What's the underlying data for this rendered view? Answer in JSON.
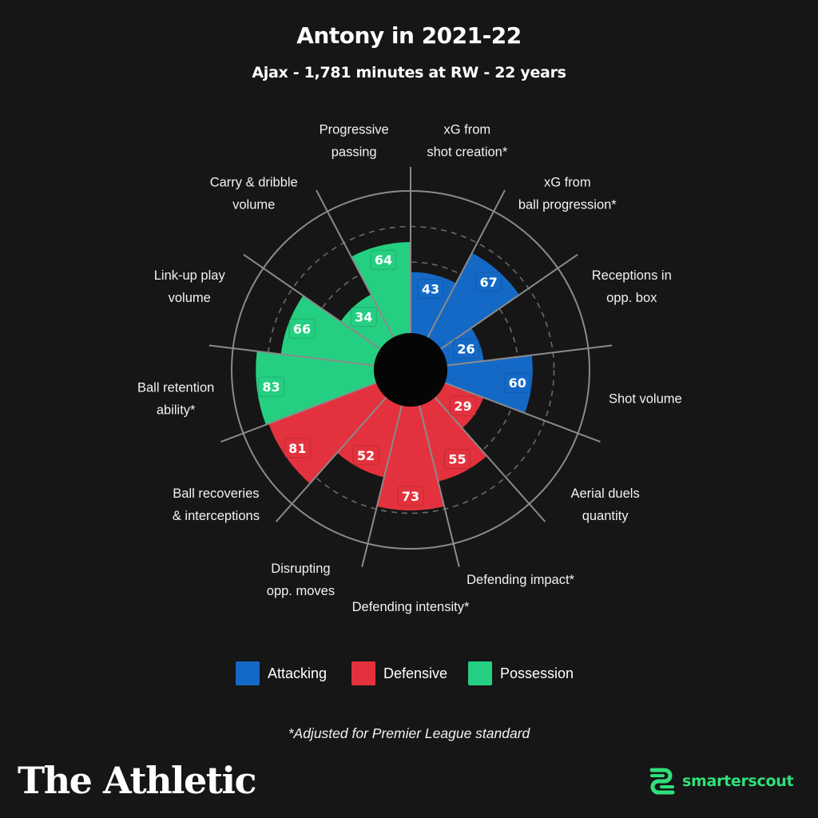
{
  "header": {
    "title": "Antony in 2021-22",
    "subtitle": "Ajax - 1,781 minutes at RW - 22 years"
  },
  "chart_data": {
    "type": "polar-bar",
    "scale": [
      0,
      100
    ],
    "grid": "dashed rings",
    "categories": [
      {
        "id": "attacking",
        "name": "Attacking",
        "color": "#1469c6"
      },
      {
        "id": "defensive",
        "name": "Defensive",
        "color": "#e3323d"
      },
      {
        "id": "possession",
        "name": "Possession",
        "color": "#25cf81"
      }
    ],
    "metrics": [
      {
        "label": [
          "xG from",
          "shot creation*"
        ],
        "value": 43,
        "category": "attacking"
      },
      {
        "label": [
          "xG from",
          "ball progression*"
        ],
        "value": 67,
        "category": "attacking"
      },
      {
        "label": [
          "Receptions in",
          "opp. box"
        ],
        "value": 26,
        "category": "attacking"
      },
      {
        "label": [
          "Shot volume"
        ],
        "value": 60,
        "category": "attacking"
      },
      {
        "label": [
          "Aerial duels",
          "quantity"
        ],
        "value": 29,
        "category": "defensive"
      },
      {
        "label": [
          "Defending impact*"
        ],
        "value": 55,
        "category": "defensive"
      },
      {
        "label": [
          "Defending intensity*"
        ],
        "value": 73,
        "category": "defensive"
      },
      {
        "label": [
          "Disrupting",
          "opp. moves"
        ],
        "value": 52,
        "category": "defensive"
      },
      {
        "label": [
          "Ball recoveries",
          "& interceptions"
        ],
        "value": 81,
        "category": "defensive"
      },
      {
        "label": [
          "Ball retention",
          "ability*"
        ],
        "value": 83,
        "category": "possession"
      },
      {
        "label": [
          "Link-up play",
          "volume"
        ],
        "value": 66,
        "category": "possession"
      },
      {
        "label": [
          "Carry & dribble",
          "volume"
        ],
        "value": 34,
        "category": "possession"
      },
      {
        "label": [
          "Progressive",
          "passing"
        ],
        "value": 64,
        "category": "possession"
      }
    ]
  },
  "legend": {
    "items": [
      {
        "label": "Attacking",
        "color": "#1469c6"
      },
      {
        "label": "Defensive",
        "color": "#e3323d"
      },
      {
        "label": "Possession",
        "color": "#25cf81"
      }
    ]
  },
  "footnote": "*Adjusted for Premier League standard",
  "branding": {
    "publisher": "The Athletic",
    "partner": "smarterscout"
  }
}
